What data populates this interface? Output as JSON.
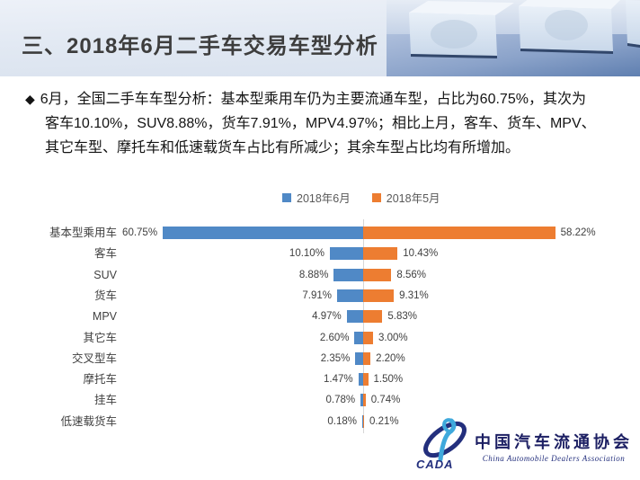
{
  "slide": {
    "title": "三、2018年6月二手车交易车型分析",
    "bullet": "◆",
    "body_lines": [
      "6月，全国二手车车型分析：基本型乘用车仍为主要流通车型，占比为60.75%，其次为",
      "客车10.10%，SUV8.88%，货车7.91%，MPV4.97%；相比上月，客车、货车、MPV、",
      "其它车型、摩托车和低速载货车占比有所减少；其余车型占比均有所增加。"
    ]
  },
  "chart_data": {
    "type": "bar",
    "subtype": "tornado-horizontal",
    "title": "",
    "categories": [
      "基本型乘用车",
      "客车",
      "SUV",
      "货车",
      "MPV",
      "其它车",
      "交叉型车",
      "摩托车",
      "挂车",
      "低速载货车"
    ],
    "series": [
      {
        "name": "2018年6月",
        "color": "#5089c6",
        "values": [
          60.75,
          10.1,
          8.88,
          7.91,
          4.97,
          2.6,
          2.35,
          1.47,
          0.78,
          0.18
        ]
      },
      {
        "name": "2018年5月",
        "color": "#ed7d31",
        "values": [
          58.22,
          10.43,
          8.56,
          9.31,
          5.83,
          3.0,
          2.2,
          1.5,
          0.74,
          0.21
        ]
      }
    ],
    "value_unit": "%",
    "value_decimals": 2,
    "legend_position": "top-center",
    "axis_style": "central-vertical-baseline, june bars extend left, may bars extend right",
    "grid": "off",
    "xlim": [
      0,
      61
    ]
  },
  "footer_logo": {
    "acronym": "CADA",
    "cn_name": "中国汽车流通协会",
    "en_name": "China Automobile Dealers Association",
    "navy": "#232f7d",
    "cyan": "#3fa9dc"
  }
}
